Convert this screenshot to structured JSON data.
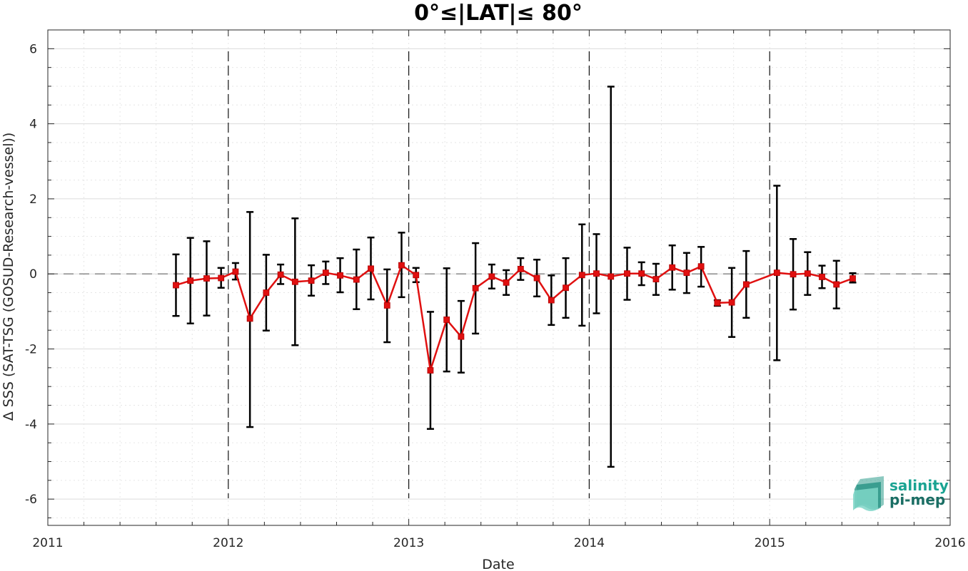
{
  "chart_data": {
    "type": "line",
    "title": "0°≤|LAT|≤ 80°",
    "xlabel": "Date",
    "ylabel": "Δ SSS (SAT-TSG (GOSUD-Research-vessel))",
    "xlim": [
      2011,
      2016
    ],
    "ylim": [
      -6.7,
      6.5
    ],
    "x_ticks": [
      2011,
      2012,
      2013,
      2014,
      2015,
      2016
    ],
    "x_tick_labels": [
      "2011",
      "2012",
      "2013",
      "2014",
      "2015",
      "2016"
    ],
    "y_ticks": [
      -6,
      -4,
      -2,
      0,
      2,
      4,
      6
    ],
    "y_tick_labels": [
      "-6",
      "-4",
      "-2",
      "0",
      "2",
      "4",
      "6"
    ],
    "grid": true,
    "zero_line": 0,
    "year_dividers": [
      2012,
      2013,
      2014,
      2015
    ],
    "line_color": "#e01010",
    "errorbar_color": "#000000",
    "series": [
      {
        "points": [
          {
            "x": 2011.71,
            "y": -0.3,
            "low": -1.12,
            "high": 0.52
          },
          {
            "x": 2011.79,
            "y": -0.18,
            "low": -1.32,
            "high": 0.96
          },
          {
            "x": 2011.88,
            "y": -0.12,
            "low": -1.11,
            "high": 0.87
          },
          {
            "x": 2011.96,
            "y": -0.11,
            "low": -0.37,
            "high": 0.16
          },
          {
            "x": 2012.04,
            "y": 0.06,
            "low": -0.15,
            "high": 0.29
          },
          {
            "x": 2012.12,
            "y": -1.19,
            "low": -4.08,
            "high": 1.65
          },
          {
            "x": 2012.21,
            "y": -0.5,
            "low": -1.51,
            "high": 0.51
          },
          {
            "x": 2012.29,
            "y": -0.02,
            "low": -0.27,
            "high": 0.25
          },
          {
            "x": 2012.37,
            "y": -0.21,
            "low": -1.9,
            "high": 1.48
          },
          {
            "x": 2012.46,
            "y": -0.18,
            "low": -0.58,
            "high": 0.23
          },
          {
            "x": 2012.54,
            "y": 0.03,
            "low": -0.27,
            "high": 0.33
          },
          {
            "x": 2012.62,
            "y": -0.04,
            "low": -0.49,
            "high": 0.42
          },
          {
            "x": 2012.71,
            "y": -0.15,
            "low": -0.94,
            "high": 0.65
          },
          {
            "x": 2012.79,
            "y": 0.14,
            "low": -0.68,
            "high": 0.97
          },
          {
            "x": 2012.88,
            "y": -0.84,
            "low": -1.82,
            "high": 0.12
          },
          {
            "x": 2012.96,
            "y": 0.23,
            "low": -0.62,
            "high": 1.1
          },
          {
            "x": 2013.04,
            "y": -0.03,
            "low": -0.22,
            "high": 0.16
          },
          {
            "x": 2013.12,
            "y": -2.57,
            "low": -4.13,
            "high": -1.01
          },
          {
            "x": 2013.21,
            "y": -1.22,
            "low": -2.6,
            "high": 0.15
          },
          {
            "x": 2013.29,
            "y": -1.67,
            "low": -2.63,
            "high": -0.72
          },
          {
            "x": 2013.37,
            "y": -0.38,
            "low": -1.59,
            "high": 0.82
          },
          {
            "x": 2013.46,
            "y": -0.07,
            "low": -0.39,
            "high": 0.25
          },
          {
            "x": 2013.54,
            "y": -0.23,
            "low": -0.56,
            "high": 0.1
          },
          {
            "x": 2013.62,
            "y": 0.13,
            "low": -0.16,
            "high": 0.42
          },
          {
            "x": 2013.71,
            "y": -0.11,
            "low": -0.6,
            "high": 0.38
          },
          {
            "x": 2013.79,
            "y": -0.7,
            "low": -1.36,
            "high": -0.04
          },
          {
            "x": 2013.87,
            "y": -0.37,
            "low": -1.17,
            "high": 0.42
          },
          {
            "x": 2013.96,
            "y": -0.03,
            "low": -1.38,
            "high": 1.32
          },
          {
            "x": 2014.04,
            "y": 0.01,
            "low": -1.05,
            "high": 1.06
          },
          {
            "x": 2014.12,
            "y": -0.07,
            "low": -5.14,
            "high": 4.99
          },
          {
            "x": 2014.21,
            "y": 0.01,
            "low": -0.69,
            "high": 0.7
          },
          {
            "x": 2014.29,
            "y": 0.01,
            "low": -0.3,
            "high": 0.31
          },
          {
            "x": 2014.37,
            "y": -0.14,
            "low": -0.56,
            "high": 0.27
          },
          {
            "x": 2014.46,
            "y": 0.17,
            "low": -0.42,
            "high": 0.76
          },
          {
            "x": 2014.54,
            "y": 0.03,
            "low": -0.51,
            "high": 0.56
          },
          {
            "x": 2014.62,
            "y": 0.2,
            "low": -0.34,
            "high": 0.72
          },
          {
            "x": 2014.71,
            "y": -0.77,
            "low": -0.85,
            "high": -0.7
          },
          {
            "x": 2014.79,
            "y": -0.76,
            "low": -1.68,
            "high": 0.16
          },
          {
            "x": 2014.87,
            "y": -0.28,
            "low": -1.17,
            "high": 0.61
          },
          {
            "x": 2015.04,
            "y": 0.03,
            "low": -2.3,
            "high": 2.35
          },
          {
            "x": 2015.13,
            "y": -0.01,
            "low": -0.95,
            "high": 0.93
          },
          {
            "x": 2015.21,
            "y": 0.01,
            "low": -0.56,
            "high": 0.58
          },
          {
            "x": 2015.29,
            "y": -0.08,
            "low": -0.38,
            "high": 0.22
          },
          {
            "x": 2015.37,
            "y": -0.28,
            "low": -0.92,
            "high": 0.35
          },
          {
            "x": 2015.46,
            "y": -0.12,
            "low": -0.23,
            "high": 0.02
          }
        ]
      }
    ]
  },
  "logo": {
    "line1": "salinity",
    "line2": "pi-mep",
    "color1": "#1aa392",
    "color2": "#1a6e64",
    "icon": "wave-sheets-icon"
  }
}
